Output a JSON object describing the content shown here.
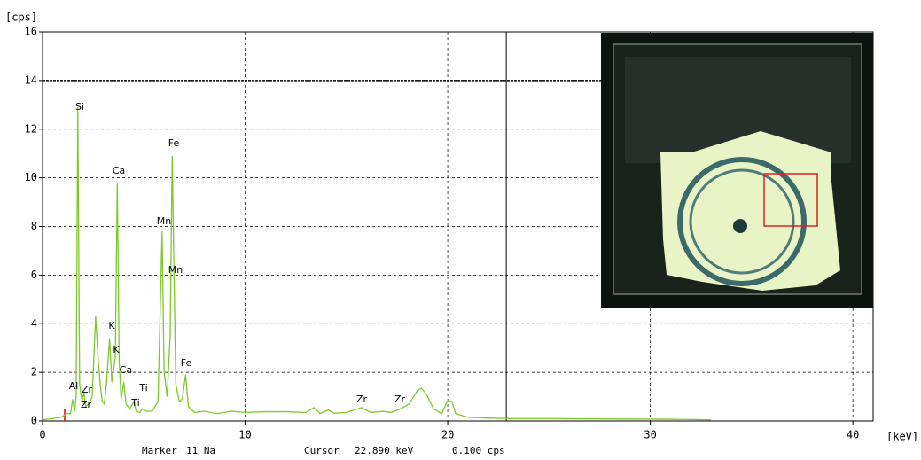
{
  "chart_data": {
    "type": "line",
    "y_label": "[cps]",
    "x_label": "[keV]",
    "x": [
      0.0,
      0.5,
      0.9,
      1.2,
      1.38,
      1.49,
      1.58,
      1.66,
      1.74,
      1.83,
      1.95,
      2.04,
      2.13,
      2.3,
      2.45,
      2.62,
      2.75,
      2.85,
      2.95,
      3.05,
      3.18,
      3.31,
      3.42,
      3.52,
      3.59,
      3.69,
      3.78,
      3.88,
      4.01,
      4.12,
      4.3,
      4.51,
      4.62,
      4.8,
      4.93,
      5.1,
      5.4,
      5.7,
      5.9,
      6.0,
      6.15,
      6.3,
      6.4,
      6.49,
      6.58,
      6.75,
      6.9,
      7.06,
      7.2,
      7.5,
      8.0,
      8.6,
      9.3,
      10.0,
      11.0,
      12.0,
      13.0,
      13.4,
      13.7,
      14.1,
      14.4,
      15.0,
      15.75,
      16.2,
      16.8,
      17.2,
      17.67,
      18.1,
      18.5,
      18.7,
      18.95,
      19.3,
      19.7,
      20.0,
      20.2,
      20.4,
      21.0,
      22.0,
      23.0,
      25.0,
      28.0,
      31.0,
      33.0
    ],
    "series": [
      {
        "color": "#7cc92a",
        "values": [
          0.05,
          0.1,
          0.15,
          0.3,
          0.3,
          0.9,
          0.4,
          1.0,
          12.9,
          1.5,
          0.8,
          1.2,
          0.6,
          0.7,
          1.0,
          4.3,
          2.5,
          1.5,
          0.8,
          0.7,
          1.8,
          3.4,
          1.6,
          2.2,
          2.6,
          9.8,
          2.5,
          0.9,
          1.6,
          0.7,
          0.5,
          0.8,
          0.4,
          0.35,
          0.5,
          0.4,
          0.4,
          0.8,
          7.8,
          2.0,
          1.0,
          3.5,
          10.9,
          6.0,
          1.5,
          0.8,
          0.9,
          1.9,
          0.6,
          0.35,
          0.4,
          0.3,
          0.4,
          0.35,
          0.38,
          0.38,
          0.35,
          0.55,
          0.3,
          0.45,
          0.32,
          0.35,
          0.55,
          0.35,
          0.4,
          0.35,
          0.5,
          0.7,
          1.25,
          1.35,
          1.1,
          0.5,
          0.3,
          0.85,
          0.8,
          0.3,
          0.15,
          0.12,
          0.1,
          0.1,
          0.08,
          0.07,
          0.05
        ]
      }
    ],
    "xlim": [
      0,
      41
    ],
    "ylim": [
      0,
      16
    ],
    "xticks": [
      0,
      10,
      20,
      30,
      40
    ],
    "yticks": [
      0,
      2,
      4,
      6,
      8,
      10,
      12,
      14,
      16
    ],
    "grid": true,
    "annotations": [
      "Si",
      "Al",
      "Zr",
      "Zr",
      "K",
      "K",
      "Ca",
      "Ca",
      "Ti",
      "Ti",
      "Mn",
      "Mn",
      "Fe",
      "Fe",
      "Zr",
      "Zr"
    ],
    "cursor": {
      "value": 22.89,
      "label": "22.890 keV"
    },
    "status": {
      "marker_title": "Marker",
      "marker": "11 Na",
      "cursor_title": "Cursor",
      "cps": "0.100 cps"
    }
  }
}
